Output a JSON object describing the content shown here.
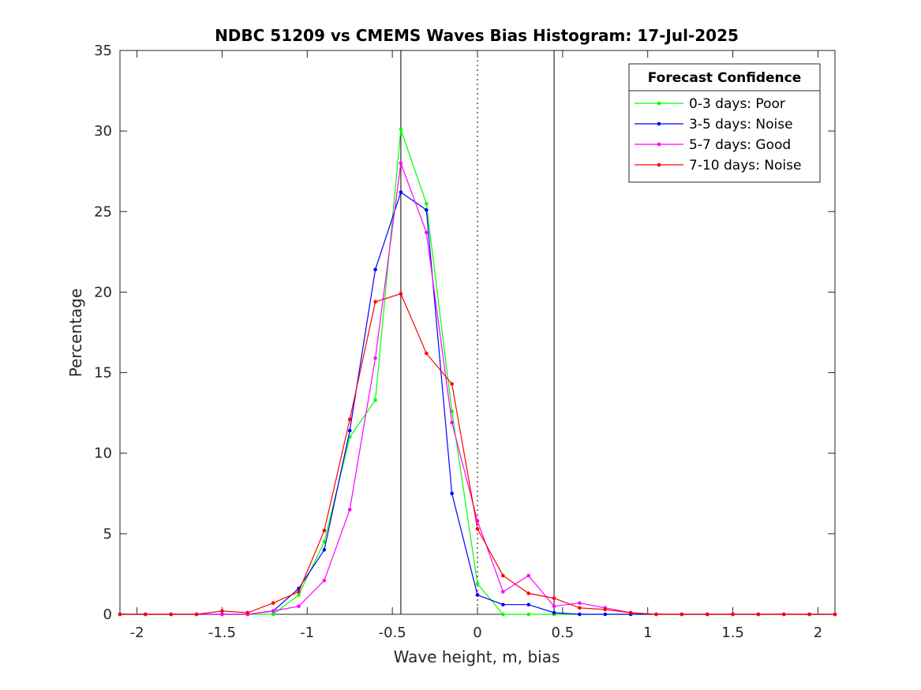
{
  "chart_data": {
    "type": "line",
    "title": "NDBC 51209 vs CMEMS Waves Bias Histogram: 17-Jul-2025",
    "xlabel": "Wave height, m, bias",
    "ylabel": "Percentage",
    "xlim": [
      -2.1,
      2.1
    ],
    "ylim": [
      0,
      35
    ],
    "xticks": [
      -2,
      -1.5,
      -1,
      -0.5,
      0,
      0.5,
      1,
      1.5,
      2
    ],
    "xtick_labels": [
      "-2",
      "-1.5",
      "-1",
      "-0.5",
      "0",
      "0.5",
      "1",
      "1.5",
      "2"
    ],
    "yticks": [
      0,
      5,
      10,
      15,
      20,
      25,
      30,
      35
    ],
    "ytick_labels": [
      "0",
      "5",
      "10",
      "15",
      "20",
      "25",
      "30",
      "35"
    ],
    "grid": false,
    "x": [
      -2.1,
      -1.95,
      -1.8,
      -1.65,
      -1.5,
      -1.35,
      -1.2,
      -1.05,
      -0.9,
      -0.75,
      -0.6,
      -0.45,
      -0.3,
      -0.15,
      0,
      0.15,
      0.3,
      0.45,
      0.6,
      0.75,
      0.9,
      1.05,
      1.2,
      1.35,
      1.5,
      1.65,
      1.8,
      1.95,
      2.1
    ],
    "series": [
      {
        "name": "0-3 days: Poor",
        "color": "#00ff00",
        "values": [
          0,
          0,
          0,
          0,
          0,
          0,
          0,
          1.2,
          4.5,
          11.0,
          13.3,
          30.1,
          25.5,
          12.6,
          1.9,
          0,
          0,
          0,
          0,
          0,
          0,
          0,
          0,
          0,
          0,
          0,
          0,
          0,
          0
        ]
      },
      {
        "name": "3-5 days: Noise",
        "color": "#0000ff",
        "values": [
          0,
          0,
          0,
          0,
          0,
          0,
          0.2,
          1.6,
          4.0,
          11.4,
          21.4,
          26.2,
          25.1,
          7.5,
          1.2,
          0.6,
          0.6,
          0.1,
          0,
          0,
          0,
          0,
          0,
          0,
          0,
          0,
          0,
          0,
          0
        ]
      },
      {
        "name": "5-7 days: Good",
        "color": "#ff00ff",
        "values": [
          0,
          0,
          0,
          0,
          0,
          0,
          0.2,
          0.5,
          2.1,
          6.5,
          15.9,
          28.0,
          23.7,
          11.9,
          5.8,
          1.4,
          2.4,
          0.5,
          0.7,
          0.4,
          0.1,
          0,
          0,
          0,
          0,
          0,
          0,
          0,
          0
        ]
      },
      {
        "name": "7-10 days: Noise",
        "color": "#ff0000",
        "values": [
          0,
          0,
          0,
          0,
          0.2,
          0.1,
          0.7,
          1.4,
          5.2,
          12.1,
          19.4,
          19.9,
          16.2,
          14.3,
          5.3,
          2.4,
          1.3,
          1.0,
          0.4,
          0.3,
          0.1,
          0,
          0,
          0,
          0,
          0,
          0,
          0,
          0
        ]
      }
    ],
    "reference_lines": [
      {
        "x": -0.45,
        "style": "solid"
      },
      {
        "x": 0,
        "style": "dotted"
      },
      {
        "x": 0.45,
        "style": "solid"
      }
    ],
    "legend": {
      "title": "Forecast Confidence",
      "position": "top-right"
    }
  }
}
